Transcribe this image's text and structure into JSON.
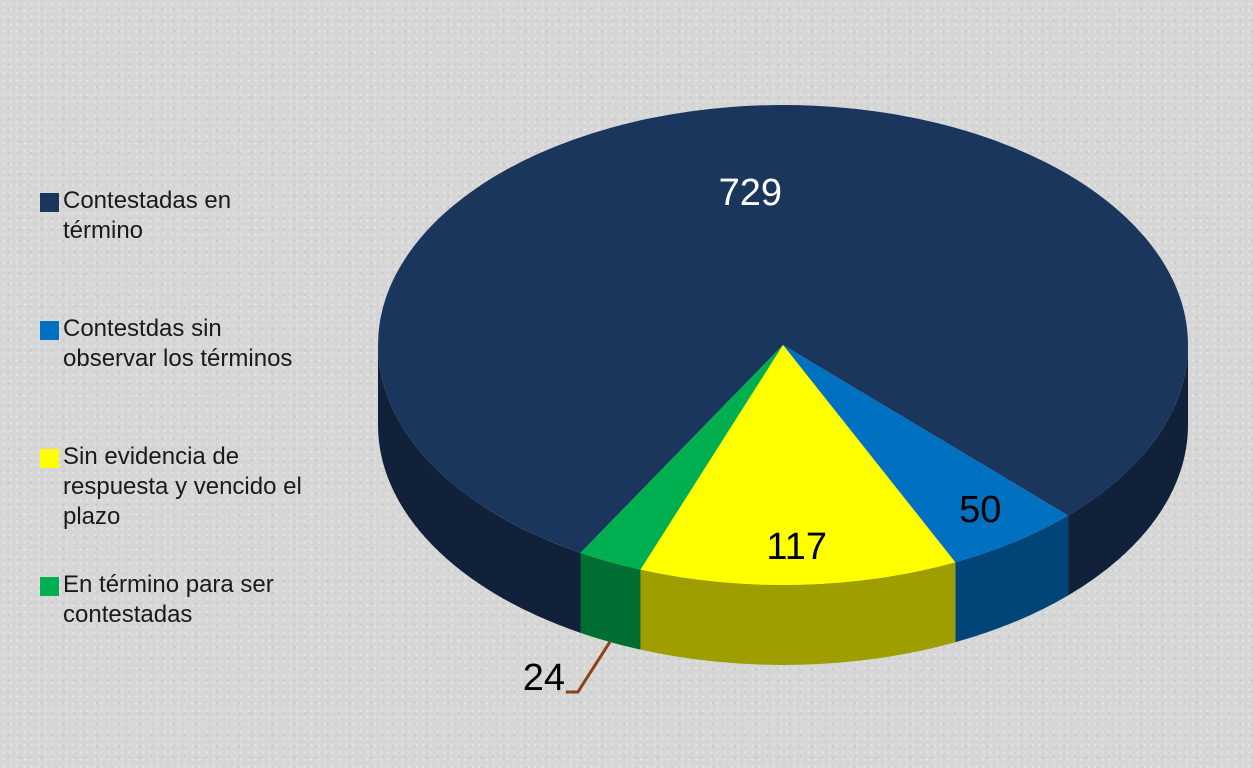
{
  "chart_data": {
    "type": "pie",
    "categories": [
      "Contestadas en término",
      "Contestdas sin observar los términos",
      "Sin evidencia de respuesta y vencido el plazo",
      "En término para ser contestadas"
    ],
    "values": [
      729,
      50,
      117,
      24
    ],
    "colors": [
      "#1b365d",
      "#0070c0",
      "#ffff00",
      "#00b050"
    ],
    "legend": "left"
  }
}
